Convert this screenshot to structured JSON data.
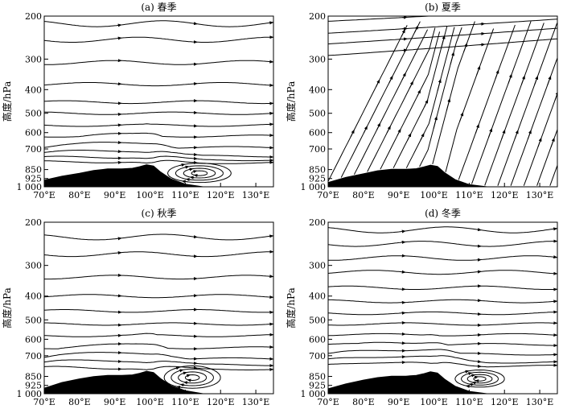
{
  "figure": {
    "y_axis_label": "高度/hPa"
  },
  "chart_data": [
    {
      "type": "streamline",
      "title": "(a) 春季",
      "ylabel": "高度/hPa",
      "y_scale": "log-pressure",
      "y_ticks": [
        "200",
        "300",
        "400",
        "500",
        "600",
        "700",
        "850",
        "925",
        "1 000"
      ],
      "x_ticks": [
        "70°E",
        "80°E",
        "90°E",
        "100°E",
        "110°E",
        "120°E",
        "130°E"
      ],
      "xlim": [
        70,
        135
      ],
      "ylim": [
        1000,
        200
      ],
      "terrain": [
        [
          70,
          940
        ],
        [
          75,
          905
        ],
        [
          80,
          880
        ],
        [
          84,
          858
        ],
        [
          88,
          845
        ],
        [
          92,
          845
        ],
        [
          95,
          840
        ],
        [
          97,
          828
        ],
        [
          99,
          812
        ],
        [
          101,
          822
        ],
        [
          103,
          870
        ],
        [
          106,
          930
        ],
        [
          110,
          975
        ],
        [
          115,
          1000
        ],
        [
          120,
          1000
        ],
        [
          135,
          1000
        ]
      ],
      "flow_heights": [
        215,
        250,
        310,
        380,
        450,
        500,
        560,
        620,
        690,
        760,
        820,
        870
      ],
      "circulation": {
        "center_lon": 114,
        "center_p": 880,
        "radius_lon": 9,
        "radius_p": 80
      },
      "flow_character": "westerly"
    },
    {
      "type": "streamline",
      "title": "(b) 夏季",
      "ylabel": "高度/hPa",
      "y_scale": "log-pressure",
      "y_ticks": [
        "200",
        "300",
        "400",
        "500",
        "600",
        "700",
        "850",
        "925",
        "1 000"
      ],
      "x_ticks": [
        "70°E",
        "80°E",
        "90°E",
        "100°E",
        "110°E",
        "120°E",
        "130°E"
      ],
      "xlim": [
        70,
        135
      ],
      "ylim": [
        1000,
        200
      ],
      "terrain": [
        [
          70,
          960
        ],
        [
          75,
          915
        ],
        [
          80,
          885
        ],
        [
          84,
          860
        ],
        [
          88,
          848
        ],
        [
          92,
          848
        ],
        [
          95,
          843
        ],
        [
          97,
          830
        ],
        [
          99,
          815
        ],
        [
          101,
          825
        ],
        [
          103,
          875
        ],
        [
          106,
          935
        ],
        [
          110,
          980
        ],
        [
          115,
          1000
        ],
        [
          120,
          1000
        ],
        [
          135,
          1000
        ]
      ],
      "flow_character": "rising"
    },
    {
      "type": "streamline",
      "title": "(c) 秋季",
      "ylabel": "高度/hPa",
      "y_scale": "log-pressure",
      "y_ticks": [
        "200",
        "300",
        "400",
        "500",
        "600",
        "700",
        "850",
        "925",
        "1 000"
      ],
      "x_ticks": [
        "70°E",
        "80°E",
        "90°E",
        "100°E",
        "110°E",
        "120°E",
        "130°E"
      ],
      "xlim": [
        70,
        135
      ],
      "ylim": [
        1000,
        200
      ],
      "terrain": [
        [
          70,
          950
        ],
        [
          75,
          900
        ],
        [
          80,
          870
        ],
        [
          84,
          852
        ],
        [
          88,
          842
        ],
        [
          92,
          842
        ],
        [
          95,
          838
        ],
        [
          97,
          826
        ],
        [
          99,
          810
        ],
        [
          101,
          820
        ],
        [
          103,
          868
        ],
        [
          106,
          928
        ],
        [
          110,
          972
        ],
        [
          115,
          1000
        ],
        [
          120,
          1000
        ],
        [
          135,
          1000
        ]
      ],
      "flow_heights": [
        230,
        270,
        335,
        400,
        460,
        520,
        580,
        650,
        720,
        790,
        860
      ],
      "circulation": {
        "center_lon": 112,
        "center_p": 860,
        "radius_lon": 8,
        "radius_p": 90
      },
      "flow_character": "westerly"
    },
    {
      "type": "streamline",
      "title": "(d) 冬季",
      "ylabel": "高度/hPa",
      "y_scale": "log-pressure",
      "y_ticks": [
        "200",
        "300",
        "400",
        "500",
        "600",
        "700",
        "850",
        "925",
        "1 000"
      ],
      "x_ticks": [
        "70°E",
        "80°E",
        "90°E",
        "100°E",
        "110°E",
        "120°E",
        "130°E"
      ],
      "xlim": [
        70,
        135
      ],
      "ylim": [
        1000,
        200
      ],
      "terrain": [
        [
          70,
          955
        ],
        [
          75,
          912
        ],
        [
          80,
          880
        ],
        [
          84,
          860
        ],
        [
          88,
          848
        ],
        [
          92,
          848
        ],
        [
          95,
          842
        ],
        [
          97,
          830
        ],
        [
          99,
          814
        ],
        [
          101,
          824
        ],
        [
          103,
          872
        ],
        [
          106,
          932
        ],
        [
          110,
          978
        ],
        [
          115,
          1000
        ],
        [
          120,
          1000
        ],
        [
          135,
          1000
        ]
      ],
      "flow_heights": [
        215,
        245,
        280,
        320,
        370,
        420,
        470,
        520,
        575,
        630,
        690,
        750,
        810
      ],
      "circulation": {
        "center_lon": 113,
        "center_p": 870,
        "radius_lon": 7,
        "radius_p": 70
      },
      "flow_character": "westerly"
    }
  ]
}
